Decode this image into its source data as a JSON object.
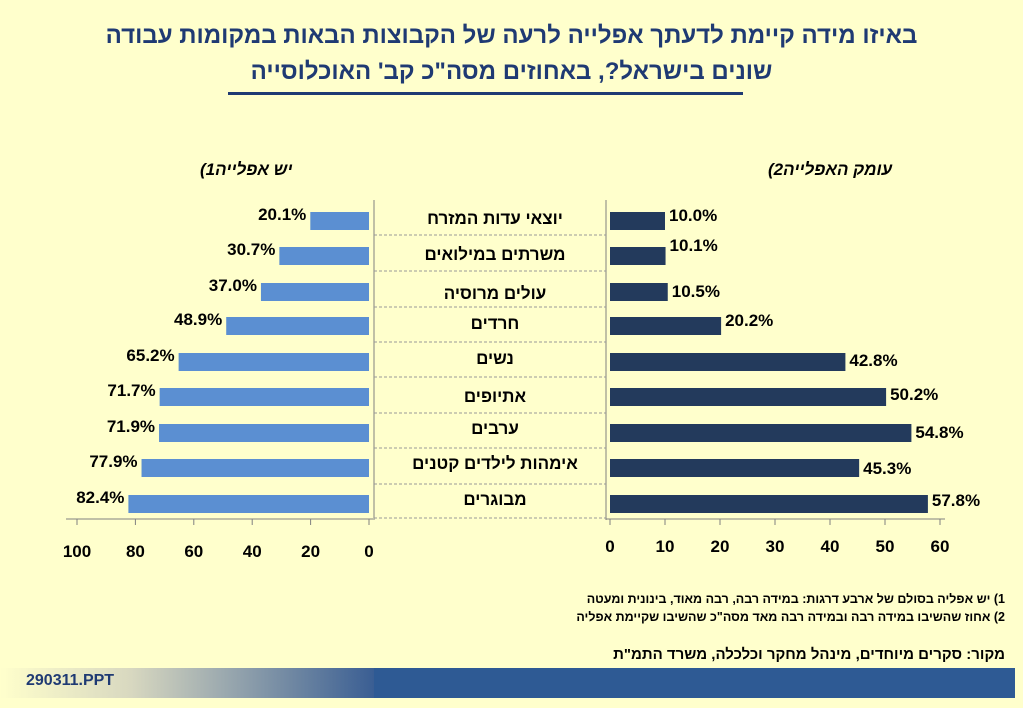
{
  "title_line1": "באיזו מידה קיימת לדעתך אפלייה לרעה של הקבוצות הבאות במקומות עבודה",
  "title_line2": "שונים בישראל?, באחוזים מסה\"כ קב' האוכלוסייה",
  "left_header": "יש אפלייה1)",
  "right_header": "עומק האפלייה2)",
  "footnote1": "1)  יש אפליה בסולם של ארבע דרגות: במידה רבה, רבה מאוד, בינונית ומעטה",
  "footnote2": "2)  אחוז שהשיבו במידה רבה ובמידה רבה מאד מסה\"כ שהשיבו שקיימת אפליה",
  "source": "מקור: סקרים מיוחדים, מינהל מחקר וכלכלה, משרד התמ\"ת",
  "footer_code": "290311.PPT",
  "colors": {
    "left_bar": "#5b8fd2",
    "right_bar": "#233a5c",
    "title": "#1f3a73"
  },
  "chart_data": [
    {
      "type": "bar",
      "orientation": "horizontal",
      "direction": "right-to-left",
      "categories": [
        "יוצאי עדות המזרח",
        "משרתים במילואים",
        "עולים מרוסיה",
        "חרדים",
        "נשים",
        "אתיופים",
        "ערבים",
        "אימהות לילדים קטנים",
        "מבוגרים"
      ],
      "values": [
        20.1,
        30.7,
        37.0,
        48.9,
        65.2,
        71.7,
        71.9,
        77.9,
        82.4
      ],
      "value_labels": [
        "20.1%",
        "30.7%",
        "37.0%",
        "48.9%",
        "65.2%",
        "71.7%",
        "71.9%",
        "77.9%",
        "82.4%"
      ],
      "xlim": [
        0,
        100
      ],
      "xticks": [
        "0",
        "20",
        "40",
        "60",
        "80",
        "100"
      ]
    },
    {
      "type": "bar",
      "orientation": "horizontal",
      "direction": "left-to-right",
      "categories": [
        "יוצאי עדות המזרח",
        "משרתים במילואים",
        "עולים מרוסיה",
        "חרדים",
        "נשים",
        "אתיופים",
        "ערבים",
        "אימהות לילדים קטנים",
        "מבוגרים"
      ],
      "values": [
        10.0,
        10.1,
        10.5,
        20.2,
        42.8,
        50.2,
        54.8,
        45.3,
        57.8
      ],
      "value_labels": [
        "10.0%",
        "10.1%",
        "10.5%",
        "20.2%",
        "42.8%",
        "50.2%",
        "54.8%",
        "45.3%",
        "57.8%"
      ],
      "xlim": [
        0,
        60
      ],
      "xticks": [
        "0",
        "10",
        "20",
        "30",
        "40",
        "50",
        "60"
      ]
    }
  ]
}
